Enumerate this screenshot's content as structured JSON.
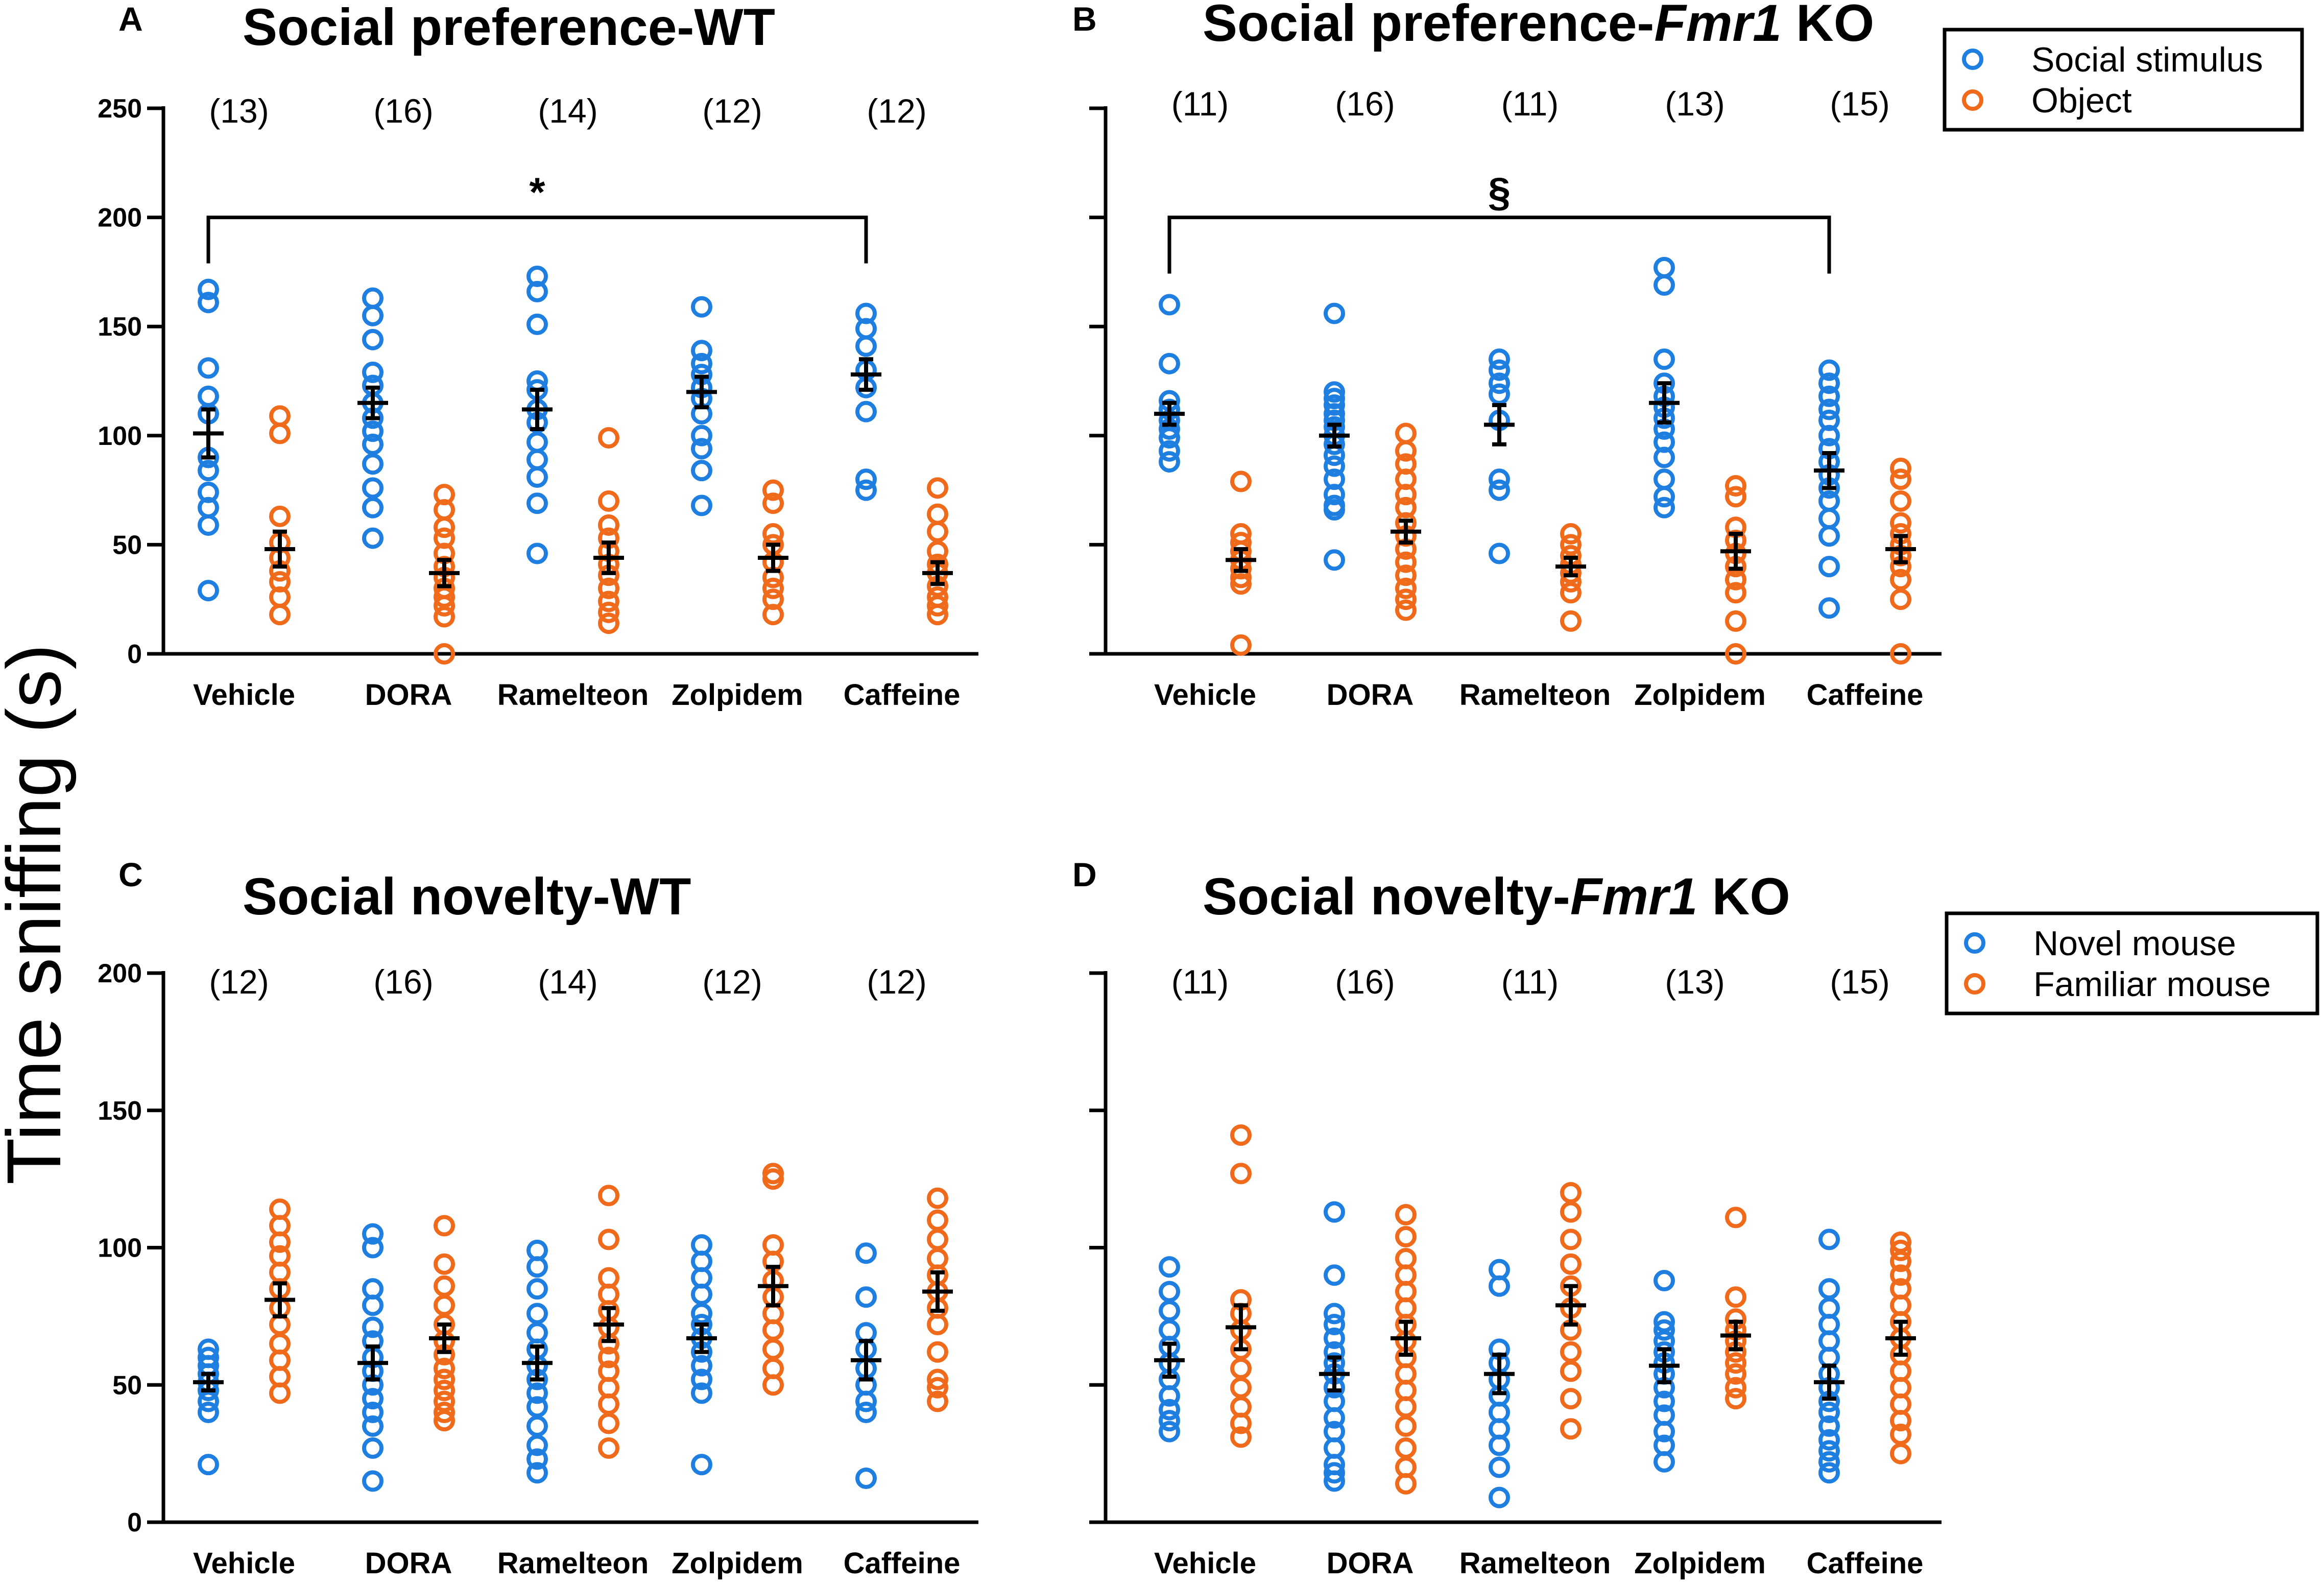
{
  "figure": {
    "y_axis_label": "Time sniffing (s)",
    "colors": {
      "blue": "#1f7fe0",
      "orange": "#f06a1c",
      "black": "#000000"
    }
  },
  "legends": [
    {
      "entries": [
        "Social stimulus",
        "Object"
      ]
    },
    {
      "entries": [
        "Novel mouse",
        "Familiar mouse"
      ]
    }
  ],
  "chart_data": [
    {
      "panel": "A",
      "type": "scatter",
      "title": "Social preference-WT",
      "title_italic": "",
      "title_suffix": "",
      "ylim": [
        0,
        250
      ],
      "yticks": [
        0,
        50,
        100,
        150,
        200,
        250
      ],
      "categories": [
        "Vehicle",
        "DORA",
        "Ramelteon",
        "Zolpidem",
        "Caffeine"
      ],
      "n_labels": [
        "(13)",
        "(16)",
        "(14)",
        "(12)",
        "(12)"
      ],
      "significance": {
        "from": 0,
        "to": 4,
        "level": 200,
        "symbol": "*"
      },
      "series": [
        {
          "name": "Social stimulus",
          "color": "blue",
          "means": [
            101,
            115,
            112,
            120,
            128
          ],
          "sems": [
            11,
            7,
            9,
            7,
            7
          ],
          "points": [
            [
              167,
              161,
              131,
              118,
              110,
              90,
              84,
              74,
              67,
              59,
              29
            ],
            [
              163,
              155,
              144,
              129,
              123,
              115,
              108,
              102,
              96,
              87,
              76,
              67,
              53
            ],
            [
              173,
              166,
              151,
              125,
              121,
              112,
              106,
              97,
              89,
              81,
              69,
              46
            ],
            [
              159,
              139,
              133,
              128,
              122,
              117,
              110,
              100,
              94,
              84,
              68
            ],
            [
              156,
              149,
              141,
              130,
              122,
              111,
              80,
              75
            ]
          ]
        },
        {
          "name": "Object",
          "color": "orange",
          "means": [
            48,
            37,
            44,
            44,
            37
          ],
          "sems": [
            8,
            6,
            7,
            6,
            5
          ],
          "points": [
            [
              109,
              101,
              63,
              51,
              44,
              38,
              33,
              26,
              18
            ],
            [
              73,
              66,
              58,
              53,
              46,
              40,
              35,
              30,
              26,
              22,
              17,
              0
            ],
            [
              99,
              70,
              59,
              53,
              47,
              41,
              36,
              30,
              24,
              19,
              14
            ],
            [
              75,
              69,
              55,
              50,
              42,
              35,
              30,
              25,
              18
            ],
            [
              76,
              64,
              56,
              47,
              41,
              37,
              31,
              26,
              22,
              18
            ]
          ]
        }
      ]
    },
    {
      "panel": "B",
      "type": "scatter",
      "title": "Social preference-",
      "title_italic": "Fmr1",
      "title_suffix": " KO",
      "ylim": [
        0,
        250
      ],
      "yticks": [
        0,
        50,
        100,
        150,
        200,
        250
      ],
      "categories": [
        "Vehicle",
        "DORA",
        "Ramelteon",
        "Zolpidem",
        "Caffeine"
      ],
      "n_labels": [
        "(11)",
        "(16)",
        "(11)",
        "(13)",
        "(15)"
      ],
      "significance": {
        "from": 0,
        "to": 4,
        "level": 200,
        "symbol": "§"
      },
      "series": [
        {
          "name": "Social stimulus",
          "color": "blue",
          "means": [
            110,
            100,
            105,
            115,
            84
          ],
          "sems": [
            5,
            5,
            9,
            9,
            8
          ],
          "points": [
            [
              160,
              133,
              116,
              112,
              107,
              103,
              99,
              93,
              88
            ],
            [
              156,
              120,
              117,
              114,
              110,
              107,
              104,
              100,
              96,
              91,
              86,
              80,
              73,
              68,
              66,
              43
            ],
            [
              135,
              130,
              124,
              119,
              107,
              80,
              75,
              46
            ],
            [
              177,
              169,
              135,
              124,
              118,
              113,
              108,
              103,
              97,
              90,
              80,
              72,
              67
            ],
            [
              130,
              124,
              118,
              112,
              107,
              100,
              94,
              88,
              82,
              76,
              70,
              62,
              54,
              40,
              21
            ]
          ]
        },
        {
          "name": "Object",
          "color": "orange",
          "means": [
            43,
            56,
            40,
            47,
            48
          ],
          "sems": [
            5,
            5,
            4,
            8,
            6
          ],
          "points": [
            [
              79,
              55,
              51,
              47,
              43,
              39,
              35,
              32,
              4
            ],
            [
              101,
              93,
              87,
              80,
              73,
              67,
              60,
              54,
              48,
              42,
              36,
              30,
              25,
              20
            ],
            [
              55,
              50,
              45,
              41,
              37,
              33,
              28,
              15
            ],
            [
              77,
              72,
              58,
              52,
              46,
              40,
              34,
              28,
              15,
              0
            ],
            [
              85,
              80,
              70,
              60,
              55,
              50,
              45,
              40,
              34,
              25,
              0
            ]
          ]
        }
      ]
    },
    {
      "panel": "C",
      "type": "scatter",
      "title": "Social novelty-WT",
      "title_italic": "",
      "title_suffix": "",
      "ylim": [
        0,
        200
      ],
      "yticks": [
        0,
        50,
        100,
        150,
        200
      ],
      "categories": [
        "Vehicle",
        "DORA",
        "Ramelteon",
        "Zolpidem",
        "Caffeine"
      ],
      "n_labels": [
        "(12)",
        "(16)",
        "(14)",
        "(12)",
        "(12)"
      ],
      "significance": null,
      "series": [
        {
          "name": "Novel mouse",
          "color": "blue",
          "means": [
            51,
            58,
            58,
            67,
            59
          ],
          "sems": [
            3,
            6,
            6,
            5,
            7
          ],
          "points": [
            [
              63,
              60,
              57,
              54,
              51,
              48,
              44,
              40,
              21
            ],
            [
              105,
              100,
              85,
              79,
              71,
              66,
              60,
              55,
              50,
              45,
              40,
              35,
              27,
              15
            ],
            [
              99,
              93,
              85,
              76,
              69,
              63,
              57,
              52,
              47,
              42,
              35,
              28,
              23,
              18
            ],
            [
              101,
              95,
              89,
              83,
              76,
              72,
              67,
              62,
              57,
              52,
              47,
              21
            ],
            [
              98,
              82,
              69,
              63,
              56,
              50,
              44,
              40,
              16
            ]
          ]
        },
        {
          "name": "Familiar mouse",
          "color": "orange",
          "means": [
            81,
            67,
            72,
            86,
            84
          ],
          "sems": [
            6,
            5,
            6,
            7,
            7
          ],
          "points": [
            [
              114,
              108,
              102,
              97,
              91,
              85,
              78,
              72,
              65,
              59,
              53,
              47
            ],
            [
              108,
              94,
              86,
              79,
              72,
              66,
              61,
              56,
              52,
              48,
              44,
              40,
              37
            ],
            [
              119,
              103,
              89,
              83,
              77,
              71,
              65,
              60,
              55,
              49,
              43,
              36,
              27
            ],
            [
              127,
              125,
              101,
              95,
              88,
              82,
              76,
              70,
              63,
              56,
              50
            ],
            [
              118,
              110,
              103,
              96,
              90,
              84,
              78,
              72,
              62,
              52,
              49,
              44
            ]
          ]
        }
      ]
    },
    {
      "panel": "D",
      "type": "scatter",
      "title": "Social novelty-",
      "title_italic": "Fmr1",
      "title_suffix": " KO",
      "ylim": [
        0,
        200
      ],
      "yticks": [
        0,
        50,
        100,
        150,
        200
      ],
      "categories": [
        "Vehicle",
        "DORA",
        "Ramelteon",
        "Zolpidem",
        "Caffeine"
      ],
      "n_labels": [
        "(11)",
        "(16)",
        "(11)",
        "(13)",
        "(15)"
      ],
      "significance": null,
      "series": [
        {
          "name": "Novel mouse",
          "color": "blue",
          "means": [
            59,
            54,
            54,
            57,
            51
          ],
          "sems": [
            6,
            6,
            7,
            6,
            6
          ],
          "points": [
            [
              93,
              84,
              77,
              70,
              64,
              58,
              52,
              46,
              41,
              37,
              33
            ],
            [
              113,
              90,
              76,
              72,
              67,
              62,
              58,
              54,
              49,
              44,
              38,
              33,
              27,
              21,
              18,
              15
            ],
            [
              92,
              86,
              63,
              58,
              52,
              46,
              40,
              34,
              28,
              20,
              9
            ],
            [
              88,
              73,
              70,
              66,
              62,
              58,
              54,
              49,
              44,
              39,
              33,
              28,
              22
            ],
            [
              103,
              85,
              78,
              72,
              66,
              60,
              54,
              49,
              44,
              40,
              35,
              30,
              26,
              22,
              18
            ]
          ]
        },
        {
          "name": "Familiar mouse",
          "color": "orange",
          "means": [
            71,
            67,
            79,
            68,
            67
          ],
          "sems": [
            8,
            6,
            7,
            5,
            6
          ],
          "points": [
            [
              141,
              127,
              81,
              76,
              70,
              63,
              56,
              49,
              42,
              36,
              31
            ],
            [
              112,
              104,
              96,
              90,
              84,
              78,
              72,
              66,
              60,
              54,
              48,
              42,
              35,
              27,
              20,
              14
            ],
            [
              120,
              113,
              103,
              94,
              86,
              78,
              70,
              62,
              55,
              45,
              34
            ],
            [
              111,
              82,
              74,
              70,
              66,
              62,
              58,
              54,
              49,
              45
            ],
            [
              102,
              99,
              95,
              90,
              85,
              79,
              73,
              67,
              61,
              55,
              49,
              43,
              37,
              32,
              25
            ]
          ]
        }
      ]
    }
  ]
}
